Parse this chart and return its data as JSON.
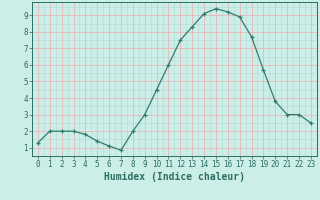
{
  "x": [
    0,
    1,
    2,
    3,
    4,
    5,
    6,
    7,
    8,
    9,
    10,
    11,
    12,
    13,
    14,
    15,
    16,
    17,
    18,
    19,
    20,
    21,
    22,
    23
  ],
  "y": [
    1.3,
    2.0,
    2.0,
    2.0,
    1.8,
    1.4,
    1.1,
    0.85,
    2.0,
    3.0,
    4.5,
    6.0,
    7.5,
    8.3,
    9.1,
    9.4,
    9.2,
    8.9,
    7.7,
    5.7,
    3.8,
    3.0,
    3.0,
    2.5
  ],
  "line_color": "#2e7d6e",
  "marker": "+",
  "marker_size": 3,
  "bg_color": "#cceee8",
  "grid_color_major": "#e8b8b8",
  "grid_color_minor": "#b8dcd8",
  "xlabel": "Humidex (Indice chaleur)",
  "xlim": [
    -0.5,
    23.5
  ],
  "ylim": [
    0.5,
    9.8
  ],
  "yticks": [
    1,
    2,
    3,
    4,
    5,
    6,
    7,
    8,
    9
  ],
  "xticks": [
    0,
    1,
    2,
    3,
    4,
    5,
    6,
    7,
    8,
    9,
    10,
    11,
    12,
    13,
    14,
    15,
    16,
    17,
    18,
    19,
    20,
    21,
    22,
    23
  ],
  "font_color": "#2e6e60",
  "tick_fontsize": 5.5,
  "label_fontsize": 7
}
